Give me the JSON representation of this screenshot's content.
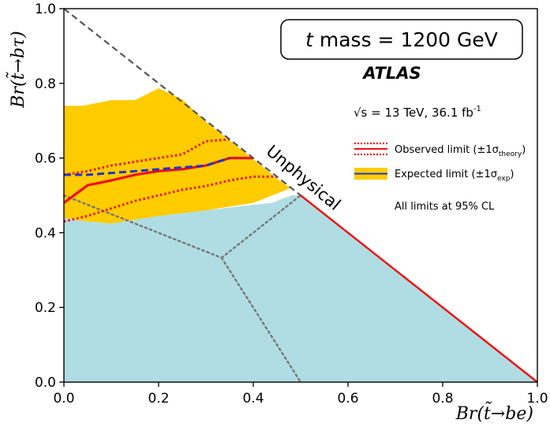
{
  "chart_data": {
    "type": "line",
    "xlabel": "Br(t̃→be)",
    "ylabel": "Br(t̃→bτ)",
    "xlim": [
      0,
      1
    ],
    "ylim": [
      0,
      1
    ],
    "x_ticks": [
      "0.0",
      "0.2",
      "0.4",
      "0.6",
      "0.8",
      "1.0"
    ],
    "y_ticks": [
      "0.0",
      "0.2",
      "0.4",
      "0.6",
      "0.8",
      "1.0"
    ],
    "tick_values": [
      0,
      0.2,
      0.4,
      0.6,
      0.8,
      1.0
    ],
    "title_box": {
      "tilde_letter": "t",
      "text": " mass = 1200 GeV"
    },
    "experiment": "ATLAS",
    "energy_label": {
      "sqrt": "√s",
      "text": " = 13 TeV, 36.1 fb",
      "superscript": "-1"
    },
    "unphysical_label": "Unphysical",
    "legend": {
      "observed": {
        "text": "Observed limit (±1σ",
        "subscript": "theory",
        "close": ")"
      },
      "expected": {
        "text": "Expected limit (±1σ",
        "subscript": "exp",
        "close": ")"
      },
      "note": "All limits at 95% CL"
    },
    "colors": {
      "excluded_region": "#b0dde3",
      "expected_band": "#ffcc00",
      "observed": "#ee1111",
      "expected": "#2233cc",
      "diagonal": "#555555",
      "dotted_grey": "#777777"
    },
    "series": [
      {
        "name": "Excluded region",
        "kind": "area",
        "points": [
          [
            0,
            0
          ],
          [
            0.5,
            0
          ],
          [
            1.0,
            0
          ],
          [
            0.5,
            0.5
          ],
          [
            0.48,
            0.5
          ],
          [
            0.44,
            0.48
          ],
          [
            0.4,
            0.475
          ],
          [
            0.3,
            0.46
          ],
          [
            0.2,
            0.445
          ],
          [
            0.1,
            0.425
          ],
          [
            0.05,
            0.43
          ],
          [
            0,
            0.44
          ]
        ]
      },
      {
        "name": "Expected ±1σ band",
        "kind": "band",
        "points": [
          [
            0,
            0.74
          ],
          [
            0.04,
            0.74
          ],
          [
            0.08,
            0.75
          ],
          [
            0.1,
            0.755
          ],
          [
            0.15,
            0.755
          ],
          [
            0.2,
            0.787
          ],
          [
            0.25,
            0.757
          ],
          [
            0.3,
            0.697
          ],
          [
            0.35,
            0.647
          ],
          [
            0.4,
            0.597
          ],
          [
            0.45,
            0.545
          ],
          [
            0.47,
            0.527
          ],
          [
            0.48,
            0.52
          ],
          [
            0.46,
            0.51
          ],
          [
            0.4,
            0.48
          ],
          [
            0.3,
            0.46
          ],
          [
            0.2,
            0.445
          ],
          [
            0.1,
            0.425
          ],
          [
            0.05,
            0.43
          ],
          [
            0,
            0.44
          ]
        ]
      },
      {
        "name": "Observed limit",
        "kind": "line",
        "points": [
          [
            0,
            0.48
          ],
          [
            0.05,
            0.527
          ],
          [
            0.1,
            0.54
          ],
          [
            0.15,
            0.555
          ],
          [
            0.2,
            0.565
          ],
          [
            0.25,
            0.57
          ],
          [
            0.3,
            0.58
          ],
          [
            0.35,
            0.6
          ],
          [
            0.4,
            0.6
          ]
        ]
      },
      {
        "name": "Observed +1σ theory",
        "kind": "dotted",
        "points": [
          [
            0,
            0.555
          ],
          [
            0.05,
            0.565
          ],
          [
            0.1,
            0.58
          ],
          [
            0.15,
            0.59
          ],
          [
            0.2,
            0.6
          ],
          [
            0.25,
            0.61
          ],
          [
            0.3,
            0.645
          ],
          [
            0.35,
            0.65
          ]
        ]
      },
      {
        "name": "Observed -1σ theory",
        "kind": "dotted",
        "points": [
          [
            0,
            0.43
          ],
          [
            0.05,
            0.445
          ],
          [
            0.1,
            0.465
          ],
          [
            0.15,
            0.485
          ],
          [
            0.2,
            0.5
          ],
          [
            0.25,
            0.515
          ],
          [
            0.3,
            0.525
          ],
          [
            0.35,
            0.54
          ],
          [
            0.4,
            0.55
          ],
          [
            0.45,
            0.55
          ]
        ]
      },
      {
        "name": "Expected limit",
        "kind": "dashed",
        "points": [
          [
            0,
            0.555
          ],
          [
            0.05,
            0.555
          ],
          [
            0.1,
            0.56
          ],
          [
            0.15,
            0.565
          ],
          [
            0.2,
            0.57
          ],
          [
            0.25,
            0.575
          ],
          [
            0.3,
            0.58
          ],
          [
            0.35,
            0.6
          ]
        ]
      },
      {
        "name": "Diagonal",
        "kind": "boundary",
        "points": [
          [
            0,
            1
          ],
          [
            1,
            0
          ]
        ]
      },
      {
        "name": "Dotted divider 1",
        "kind": "divider",
        "points": [
          [
            0,
            0.5
          ],
          [
            0.333,
            0.333
          ]
        ]
      },
      {
        "name": "Dotted divider 2",
        "kind": "divider",
        "points": [
          [
            0.333,
            0.333
          ],
          [
            0.5,
            0.5
          ]
        ]
      },
      {
        "name": "Dotted divider 3",
        "kind": "divider",
        "points": [
          [
            0.333,
            0.333
          ],
          [
            0.5,
            0
          ]
        ]
      }
    ]
  }
}
